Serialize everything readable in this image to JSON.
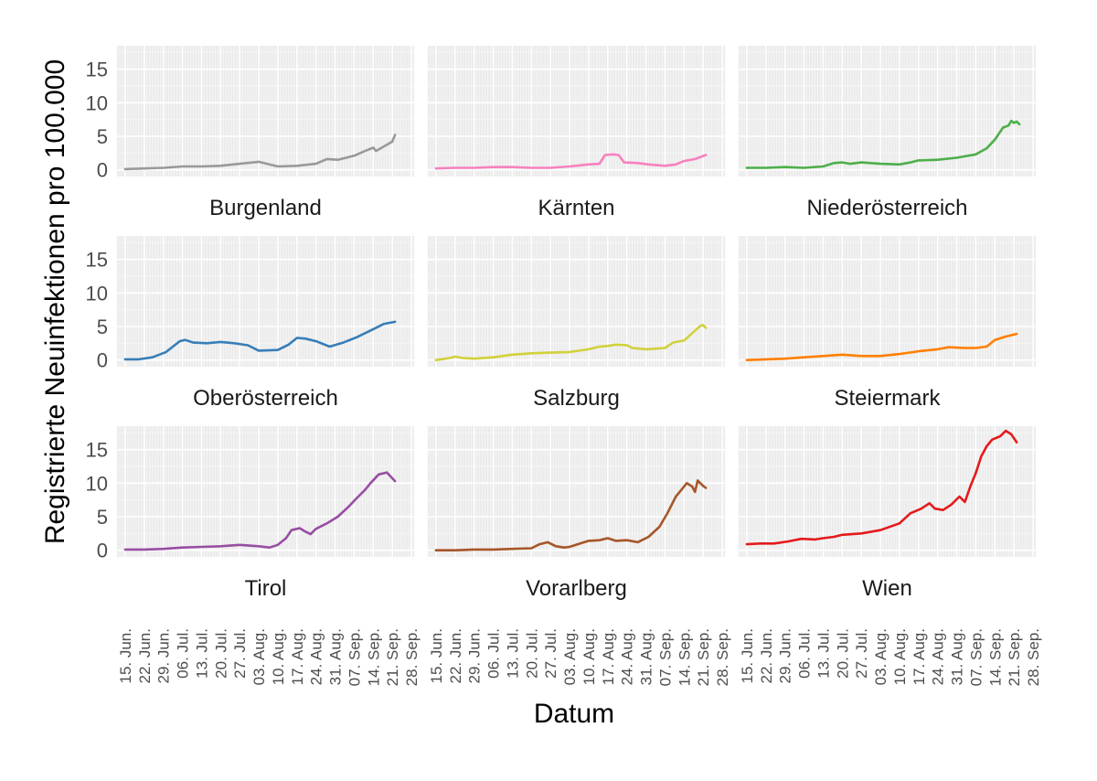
{
  "chart_data": {
    "type": "line",
    "layout": "facet-grid-3x3",
    "xlabel": "Datum",
    "ylabel": "Registrierte Neuinfektionen pro 100.000",
    "ylim": [
      -1,
      18.5
    ],
    "yticks": [
      0,
      5,
      10,
      15
    ],
    "day_range": [
      -3,
      106
    ],
    "xticks": [
      {
        "label": "15. Jun.",
        "day": 0
      },
      {
        "label": "22. Jun.",
        "day": 7
      },
      {
        "label": "29. Jun.",
        "day": 14
      },
      {
        "label": "06. Jul.",
        "day": 21
      },
      {
        "label": "13. Jul.",
        "day": 28
      },
      {
        "label": "20. Jul.",
        "day": 35
      },
      {
        "label": "27. Jul.",
        "day": 42
      },
      {
        "label": "03. Aug.",
        "day": 49
      },
      {
        "label": "10. Aug.",
        "day": 56
      },
      {
        "label": "17. Aug.",
        "day": 63
      },
      {
        "label": "24. Aug.",
        "day": 70
      },
      {
        "label": "31. Aug.",
        "day": 77
      },
      {
        "label": "07. Sep.",
        "day": 84
      },
      {
        "label": "14. Sep.",
        "day": 91
      },
      {
        "label": "21. Sep.",
        "day": 98
      },
      {
        "label": "28. Sep.",
        "day": 105
      }
    ],
    "series": [
      {
        "name": "Burgenland",
        "color": "#999999",
        "points": [
          [
            0,
            0.1
          ],
          [
            7,
            0.2
          ],
          [
            14,
            0.3
          ],
          [
            21,
            0.5
          ],
          [
            28,
            0.5
          ],
          [
            35,
            0.6
          ],
          [
            42,
            0.9
          ],
          [
            49,
            1.2
          ],
          [
            56,
            0.5
          ],
          [
            63,
            0.6
          ],
          [
            70,
            0.9
          ],
          [
            74,
            1.6
          ],
          [
            78,
            1.5
          ],
          [
            84,
            2.1
          ],
          [
            88,
            2.8
          ],
          [
            91,
            3.3
          ],
          [
            92,
            2.8
          ],
          [
            95,
            3.5
          ],
          [
            98,
            4.2
          ],
          [
            99,
            5.2
          ]
        ]
      },
      {
        "name": "Kärnten",
        "color": "#F781BF",
        "points": [
          [
            0,
            0.2
          ],
          [
            7,
            0.3
          ],
          [
            14,
            0.3
          ],
          [
            21,
            0.4
          ],
          [
            28,
            0.4
          ],
          [
            35,
            0.3
          ],
          [
            42,
            0.3
          ],
          [
            49,
            0.5
          ],
          [
            56,
            0.8
          ],
          [
            60,
            0.9
          ],
          [
            62,
            2.2
          ],
          [
            65,
            2.3
          ],
          [
            67,
            2.2
          ],
          [
            69,
            1.1
          ],
          [
            74,
            1.0
          ],
          [
            78,
            0.8
          ],
          [
            84,
            0.6
          ],
          [
            88,
            0.8
          ],
          [
            91,
            1.3
          ],
          [
            95,
            1.6
          ],
          [
            99,
            2.2
          ]
        ]
      },
      {
        "name": "Niederösterreich",
        "color": "#4DAF4A",
        "points": [
          [
            0,
            0.3
          ],
          [
            7,
            0.3
          ],
          [
            14,
            0.4
          ],
          [
            21,
            0.3
          ],
          [
            28,
            0.5
          ],
          [
            32,
            1.0
          ],
          [
            35,
            1.1
          ],
          [
            38,
            0.9
          ],
          [
            42,
            1.1
          ],
          [
            49,
            0.9
          ],
          [
            56,
            0.8
          ],
          [
            60,
            1.1
          ],
          [
            63,
            1.4
          ],
          [
            70,
            1.5
          ],
          [
            77,
            1.8
          ],
          [
            84,
            2.3
          ],
          [
            88,
            3.2
          ],
          [
            91,
            4.5
          ],
          [
            94,
            6.3
          ],
          [
            96,
            6.6
          ],
          [
            97,
            7.3
          ],
          [
            98,
            7.0
          ],
          [
            99,
            7.2
          ],
          [
            100,
            6.8
          ]
        ]
      },
      {
        "name": "Oberösterreich",
        "color": "#377EB8",
        "points": [
          [
            0,
            0.1
          ],
          [
            5,
            0.1
          ],
          [
            10,
            0.4
          ],
          [
            15,
            1.2
          ],
          [
            20,
            2.8
          ],
          [
            22,
            3.0
          ],
          [
            25,
            2.6
          ],
          [
            30,
            2.5
          ],
          [
            35,
            2.7
          ],
          [
            40,
            2.5
          ],
          [
            45,
            2.2
          ],
          [
            49,
            1.4
          ],
          [
            56,
            1.5
          ],
          [
            60,
            2.3
          ],
          [
            63,
            3.3
          ],
          [
            66,
            3.2
          ],
          [
            70,
            2.8
          ],
          [
            75,
            2.0
          ],
          [
            80,
            2.6
          ],
          [
            85,
            3.4
          ],
          [
            90,
            4.4
          ],
          [
            95,
            5.4
          ],
          [
            99,
            5.7
          ]
        ]
      },
      {
        "name": "Salzburg",
        "color": "#D1D13C",
        "points": [
          [
            0,
            0.0
          ],
          [
            5,
            0.3
          ],
          [
            7,
            0.5
          ],
          [
            10,
            0.3
          ],
          [
            14,
            0.2
          ],
          [
            21,
            0.4
          ],
          [
            28,
            0.8
          ],
          [
            35,
            1.0
          ],
          [
            42,
            1.1
          ],
          [
            49,
            1.2
          ],
          [
            56,
            1.6
          ],
          [
            60,
            2.0
          ],
          [
            63,
            2.1
          ],
          [
            66,
            2.3
          ],
          [
            70,
            2.2
          ],
          [
            72,
            1.8
          ],
          [
            77,
            1.6
          ],
          [
            84,
            1.8
          ],
          [
            87,
            2.6
          ],
          [
            91,
            2.9
          ],
          [
            94,
            4.0
          ],
          [
            97,
            5.1
          ],
          [
            98,
            5.2
          ],
          [
            99,
            4.8
          ]
        ]
      },
      {
        "name": "Steiermark",
        "color": "#FF7F00",
        "points": [
          [
            0,
            0.0
          ],
          [
            7,
            0.1
          ],
          [
            14,
            0.2
          ],
          [
            21,
            0.4
          ],
          [
            28,
            0.6
          ],
          [
            35,
            0.8
          ],
          [
            42,
            0.6
          ],
          [
            49,
            0.6
          ],
          [
            56,
            0.9
          ],
          [
            63,
            1.3
          ],
          [
            70,
            1.6
          ],
          [
            74,
            1.9
          ],
          [
            80,
            1.8
          ],
          [
            84,
            1.8
          ],
          [
            88,
            2.0
          ],
          [
            91,
            3.0
          ],
          [
            95,
            3.5
          ],
          [
            99,
            3.9
          ]
        ]
      },
      {
        "name": "Tirol",
        "color": "#984EA3",
        "points": [
          [
            0,
            0.1
          ],
          [
            7,
            0.1
          ],
          [
            14,
            0.2
          ],
          [
            21,
            0.4
          ],
          [
            28,
            0.5
          ],
          [
            35,
            0.6
          ],
          [
            42,
            0.8
          ],
          [
            49,
            0.6
          ],
          [
            53,
            0.4
          ],
          [
            56,
            0.8
          ],
          [
            59,
            1.8
          ],
          [
            61,
            3.0
          ],
          [
            64,
            3.3
          ],
          [
            66,
            2.8
          ],
          [
            68,
            2.4
          ],
          [
            70,
            3.2
          ],
          [
            74,
            4.0
          ],
          [
            78,
            5.0
          ],
          [
            82,
            6.5
          ],
          [
            85,
            7.8
          ],
          [
            88,
            9.0
          ],
          [
            90,
            10.0
          ],
          [
            93,
            11.3
          ],
          [
            96,
            11.6
          ],
          [
            99,
            10.3
          ]
        ]
      },
      {
        "name": "Vorarlberg",
        "color": "#A65628",
        "points": [
          [
            0,
            0.0
          ],
          [
            7,
            0.0
          ],
          [
            14,
            0.1
          ],
          [
            21,
            0.1
          ],
          [
            28,
            0.2
          ],
          [
            35,
            0.3
          ],
          [
            38,
            0.9
          ],
          [
            41,
            1.2
          ],
          [
            44,
            0.6
          ],
          [
            47,
            0.4
          ],
          [
            49,
            0.5
          ],
          [
            52,
            0.9
          ],
          [
            56,
            1.4
          ],
          [
            60,
            1.5
          ],
          [
            63,
            1.8
          ],
          [
            66,
            1.4
          ],
          [
            70,
            1.5
          ],
          [
            74,
            1.2
          ],
          [
            78,
            2.0
          ],
          [
            82,
            3.5
          ],
          [
            85,
            5.6
          ],
          [
            88,
            8.0
          ],
          [
            90,
            9.0
          ],
          [
            92,
            10.0
          ],
          [
            94,
            9.5
          ],
          [
            95,
            8.7
          ],
          [
            96,
            10.4
          ],
          [
            98,
            9.6
          ],
          [
            99,
            9.3
          ]
        ]
      },
      {
        "name": "Wien",
        "color": "#E41A1C",
        "points": [
          [
            0,
            0.9
          ],
          [
            5,
            1.0
          ],
          [
            10,
            1.0
          ],
          [
            15,
            1.3
          ],
          [
            20,
            1.7
          ],
          [
            25,
            1.6
          ],
          [
            28,
            1.8
          ],
          [
            32,
            2.0
          ],
          [
            35,
            2.3
          ],
          [
            42,
            2.5
          ],
          [
            49,
            3.0
          ],
          [
            56,
            4.0
          ],
          [
            60,
            5.5
          ],
          [
            64,
            6.2
          ],
          [
            67,
            7.0
          ],
          [
            69,
            6.2
          ],
          [
            72,
            6.0
          ],
          [
            75,
            6.8
          ],
          [
            78,
            8.0
          ],
          [
            80,
            7.2
          ],
          [
            82,
            9.5
          ],
          [
            84,
            11.5
          ],
          [
            86,
            14.0
          ],
          [
            88,
            15.5
          ],
          [
            90,
            16.5
          ],
          [
            93,
            17.0
          ],
          [
            95,
            17.8
          ],
          [
            97,
            17.3
          ],
          [
            99,
            16.1
          ]
        ]
      }
    ]
  }
}
